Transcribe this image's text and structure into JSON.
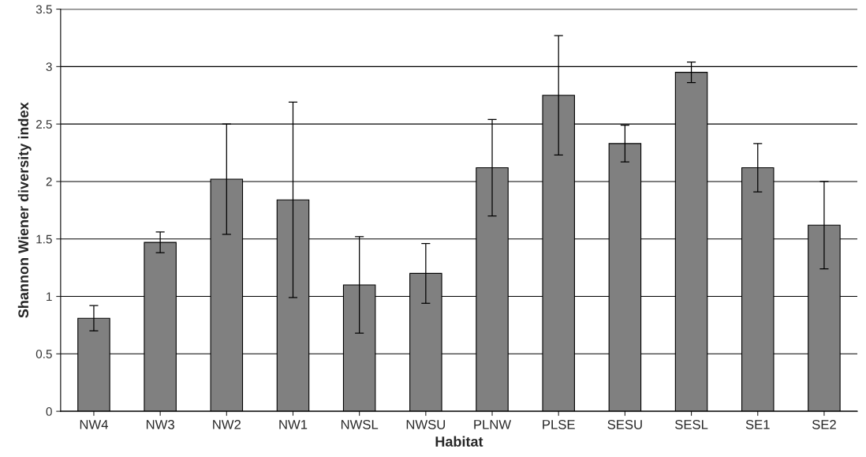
{
  "chart_data": {
    "type": "bar",
    "xlabel": "Habitat",
    "ylabel": "Shannon Wiener diversity index",
    "categories": [
      "NW4",
      "NW3",
      "NW2",
      "NW1",
      "NWSL",
      "NWSU",
      "PLNW",
      "PLSE",
      "SESU",
      "SESL",
      "SE1",
      "SE2"
    ],
    "values": [
      0.81,
      1.47,
      2.02,
      1.84,
      1.1,
      1.2,
      2.12,
      2.75,
      2.33,
      2.95,
      2.12,
      1.62
    ],
    "errors": [
      0.11,
      0.09,
      0.48,
      0.85,
      0.42,
      0.26,
      0.42,
      0.52,
      0.16,
      0.09,
      0.21,
      0.38
    ],
    "color": "#808080",
    "ylim": [
      0,
      3.5
    ],
    "yticks": [
      0,
      0.5,
      1,
      1.5,
      2,
      2.5,
      3,
      3.5
    ],
    "grid": "y"
  }
}
